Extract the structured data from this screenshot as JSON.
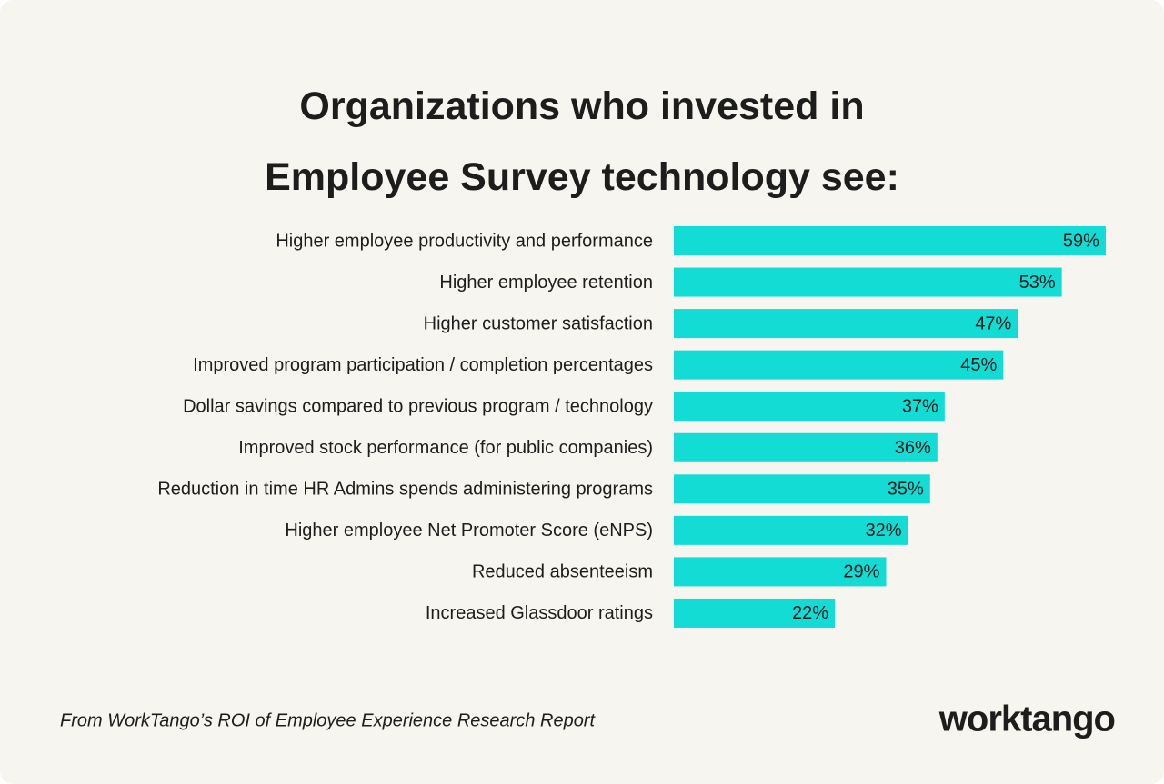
{
  "chart_data": {
    "type": "bar",
    "orientation": "horizontal",
    "title": "Organizations who invested in Employee Survey technology see:",
    "categories": [
      "Higher employee productivity and performance",
      "Higher employee retention",
      "Higher customer satisfaction",
      "Improved program participation / completion percentages",
      "Dollar savings compared to previous program / technology",
      "Improved stock performance (for public companies)",
      "Reduction in time HR Admins spends administering programs",
      "Higher employee Net Promoter Score (eNPS)",
      "Reduced absenteeism",
      "Increased Glassdoor ratings"
    ],
    "values": [
      59,
      53,
      47,
      45,
      37,
      36,
      35,
      32,
      29,
      22
    ],
    "value_labels": [
      "59%",
      "53%",
      "47%",
      "45%",
      "37%",
      "36%",
      "35%",
      "32%",
      "29%",
      "22%"
    ],
    "color": "#12dcd4",
    "source": "From WorkTango’s ROI of Employee Experience Research Report",
    "logo": "worktango"
  }
}
